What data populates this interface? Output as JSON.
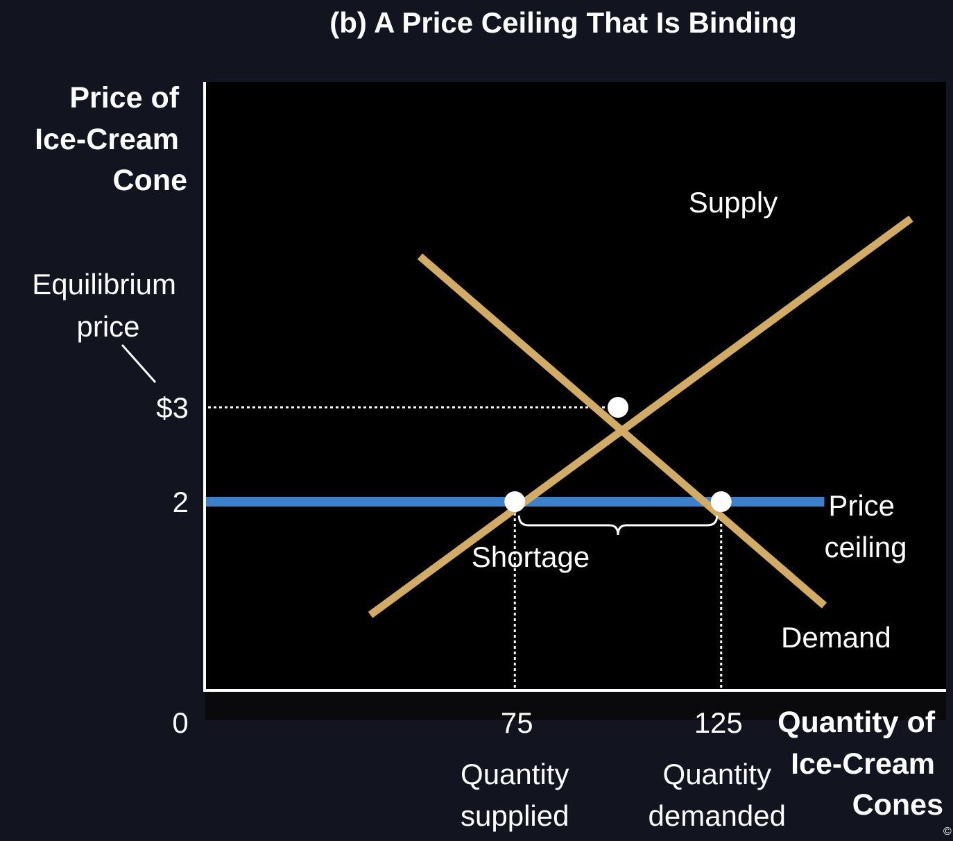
{
  "chart_data": {
    "type": "line",
    "title": "(b) A Price Ceiling That Is Binding",
    "ylabel": [
      "Price of",
      "Ice-Cream",
      "Cone"
    ],
    "xlabel": [
      "Quantity of",
      "Ice-Cream",
      "Cones"
    ],
    "origin_label": "0",
    "y_ticks": [
      {
        "value": 3,
        "label": "$3"
      },
      {
        "value": 2,
        "label": "2"
      }
    ],
    "x_ticks": [
      {
        "value": 75,
        "label": "75",
        "caption": [
          "Quantity",
          "supplied"
        ]
      },
      {
        "value": 125,
        "label": "125",
        "caption": [
          "Quantity",
          "demanded"
        ]
      }
    ],
    "series": [
      {
        "name": "Supply",
        "color": "#d2ac64",
        "points": [
          [
            40,
            0.8
          ],
          [
            171,
            5.0
          ]
        ]
      },
      {
        "name": "Demand",
        "color": "#d2ac64",
        "points": [
          [
            52,
            4.6
          ],
          [
            150,
            0.9
          ]
        ]
      }
    ],
    "price_ceiling": {
      "label": [
        "Price",
        "ceiling"
      ],
      "value": 2,
      "x_range": [
        0,
        150
      ],
      "color": "#3c7fcb"
    },
    "equilibrium": {
      "label": [
        "Equilibrium",
        "price"
      ],
      "x": 100,
      "y": 3
    },
    "points": [
      {
        "x": 75,
        "y": 2
      },
      {
        "x": 100,
        "y": 3
      },
      {
        "x": 125,
        "y": 2
      }
    ],
    "shortage": {
      "label": "Shortage",
      "from": 75,
      "to": 125
    },
    "copyright": "©",
    "xlim": [
      0,
      182
    ],
    "ylim": [
      0,
      6.2
    ]
  }
}
